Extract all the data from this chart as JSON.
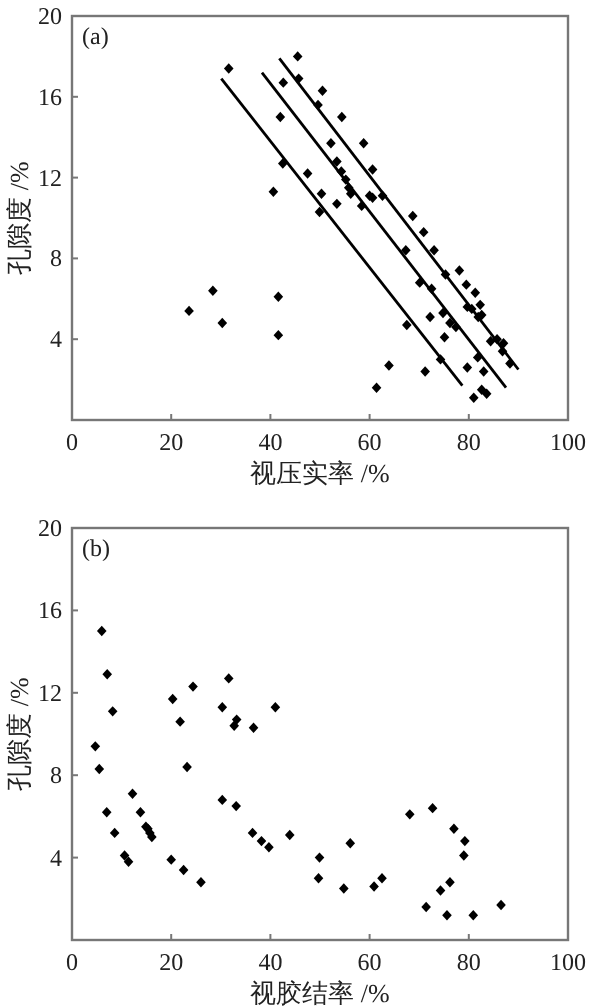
{
  "chart_data": [
    {
      "type": "scatter",
      "xlabel": "视压实率 /%",
      "ylabel": "孔隙度 /%",
      "annotations": [
        "(a)"
      ],
      "grid": false,
      "xlim": [
        0,
        100
      ],
      "ylim": [
        0,
        20
      ],
      "xticks": [
        0,
        20,
        40,
        60,
        80,
        100
      ],
      "yticks": [
        {
          "value": 0,
          "label": null
        },
        4,
        8,
        12,
        16,
        20
      ],
      "series": [
        {
          "color": "#000000",
          "marker": "diamond",
          "x": [
            31.6,
            45.5,
            45.7,
            42.6,
            50.5,
            49.6,
            42.0,
            54.4,
            42.5,
            47.5,
            52.2,
            58.8,
            53.4,
            54.3,
            60.6,
            55.2,
            55.8,
            56.2,
            60.0,
            60.6,
            62.6,
            40.6,
            50.3,
            53.4,
            58.4,
            49.9,
            68.7,
            70.9,
            67.3,
            73.0,
            75.3,
            78.1,
            70.1,
            72.5,
            79.5,
            81.3,
            79.7,
            82.3,
            80.6,
            81.9,
            82.6,
            74.8,
            72.2,
            76.2,
            77.4,
            67.5,
            75.1,
            84.4,
            85.7,
            87.0,
            86.8,
            81.8,
            74.3,
            88.3,
            63.9,
            83.0,
            79.7,
            71.2,
            61.4,
            82.6,
            83.6,
            81.0,
            23.6,
            28.4,
            30.3,
            41.6,
            41.6
          ],
          "values": [
            17.4,
            18.0,
            16.9,
            16.7,
            16.3,
            15.6,
            15.0,
            15.0,
            12.7,
            12.2,
            13.7,
            13.7,
            12.8,
            12.3,
            12.4,
            11.9,
            11.5,
            11.2,
            11.1,
            11.0,
            11.1,
            11.3,
            11.2,
            10.7,
            10.6,
            10.3,
            10.1,
            9.3,
            8.4,
            8.4,
            7.2,
            7.4,
            6.8,
            6.5,
            6.7,
            6.3,
            5.6,
            5.7,
            5.5,
            5.1,
            5.2,
            5.3,
            5.1,
            4.8,
            4.6,
            4.7,
            4.1,
            3.9,
            4.0,
            3.8,
            3.4,
            3.1,
            3.0,
            2.8,
            2.7,
            2.4,
            2.6,
            2.4,
            1.6,
            1.5,
            1.3,
            1.1,
            5.4,
            6.4,
            4.8,
            6.1,
            4.2
          ]
        },
        {
          "type": "line",
          "color": "#000000",
          "x": [
            30.1,
            78.7
          ],
          "values": [
            16.9,
            1.7
          ]
        },
        {
          "type": "line",
          "color": "#000000",
          "x": [
            38.3,
            87.5
          ],
          "values": [
            17.2,
            1.6
          ]
        },
        {
          "type": "line",
          "color": "#000000",
          "x": [
            41.8,
            90.0
          ],
          "values": [
            17.9,
            2.5
          ]
        }
      ]
    },
    {
      "type": "scatter",
      "xlabel": "视胶结率 /%",
      "ylabel": "孔隙度 /%",
      "annotations": [
        "(b)"
      ],
      "marker": "diamond",
      "grid": false,
      "xlim": [
        0,
        100
      ],
      "ylim": [
        0,
        20
      ],
      "xticks": [
        0,
        20,
        40,
        60,
        80,
        100
      ],
      "yticks": [
        {
          "value": 0,
          "label": null
        },
        4,
        8,
        12,
        16,
        20
      ],
      "series": [
        {
          "color": "#000000",
          "x": [
            6.0,
            7.1,
            8.2,
            4.7,
            20.3,
            21.8,
            24.4,
            30.3,
            31.6,
            32.7,
            33.2,
            36.6,
            41.0,
            5.5,
            7.0,
            8.6,
            12.2,
            13.8,
            10.6,
            11.4,
            14.9,
            15.3,
            15.7,
            16.1,
            20.0,
            22.5,
            23.2,
            26.0,
            30.3,
            33.1,
            36.4,
            38.2,
            39.7,
            43.9,
            49.9,
            49.7,
            54.8,
            56.1,
            60.9,
            62.5,
            68.1,
            72.7,
            71.4,
            74.3,
            75.6,
            76.2,
            77.0,
            79.2,
            79.0,
            80.9,
            86.5
          ],
          "values": [
            15.0,
            12.9,
            11.1,
            9.4,
            11.7,
            10.6,
            12.3,
            11.3,
            12.7,
            10.4,
            10.7,
            10.3,
            11.3,
            8.3,
            6.2,
            5.2,
            7.1,
            6.2,
            4.1,
            3.8,
            5.5,
            5.4,
            5.2,
            5.0,
            3.9,
            3.4,
            8.4,
            2.8,
            6.8,
            6.5,
            5.2,
            4.8,
            4.5,
            5.1,
            4.0,
            3.0,
            2.5,
            4.7,
            2.6,
            3.0,
            6.1,
            6.4,
            1.6,
            2.4,
            1.2,
            2.8,
            5.4,
            4.8,
            4.1,
            1.2,
            1.7
          ]
        }
      ]
    }
  ]
}
